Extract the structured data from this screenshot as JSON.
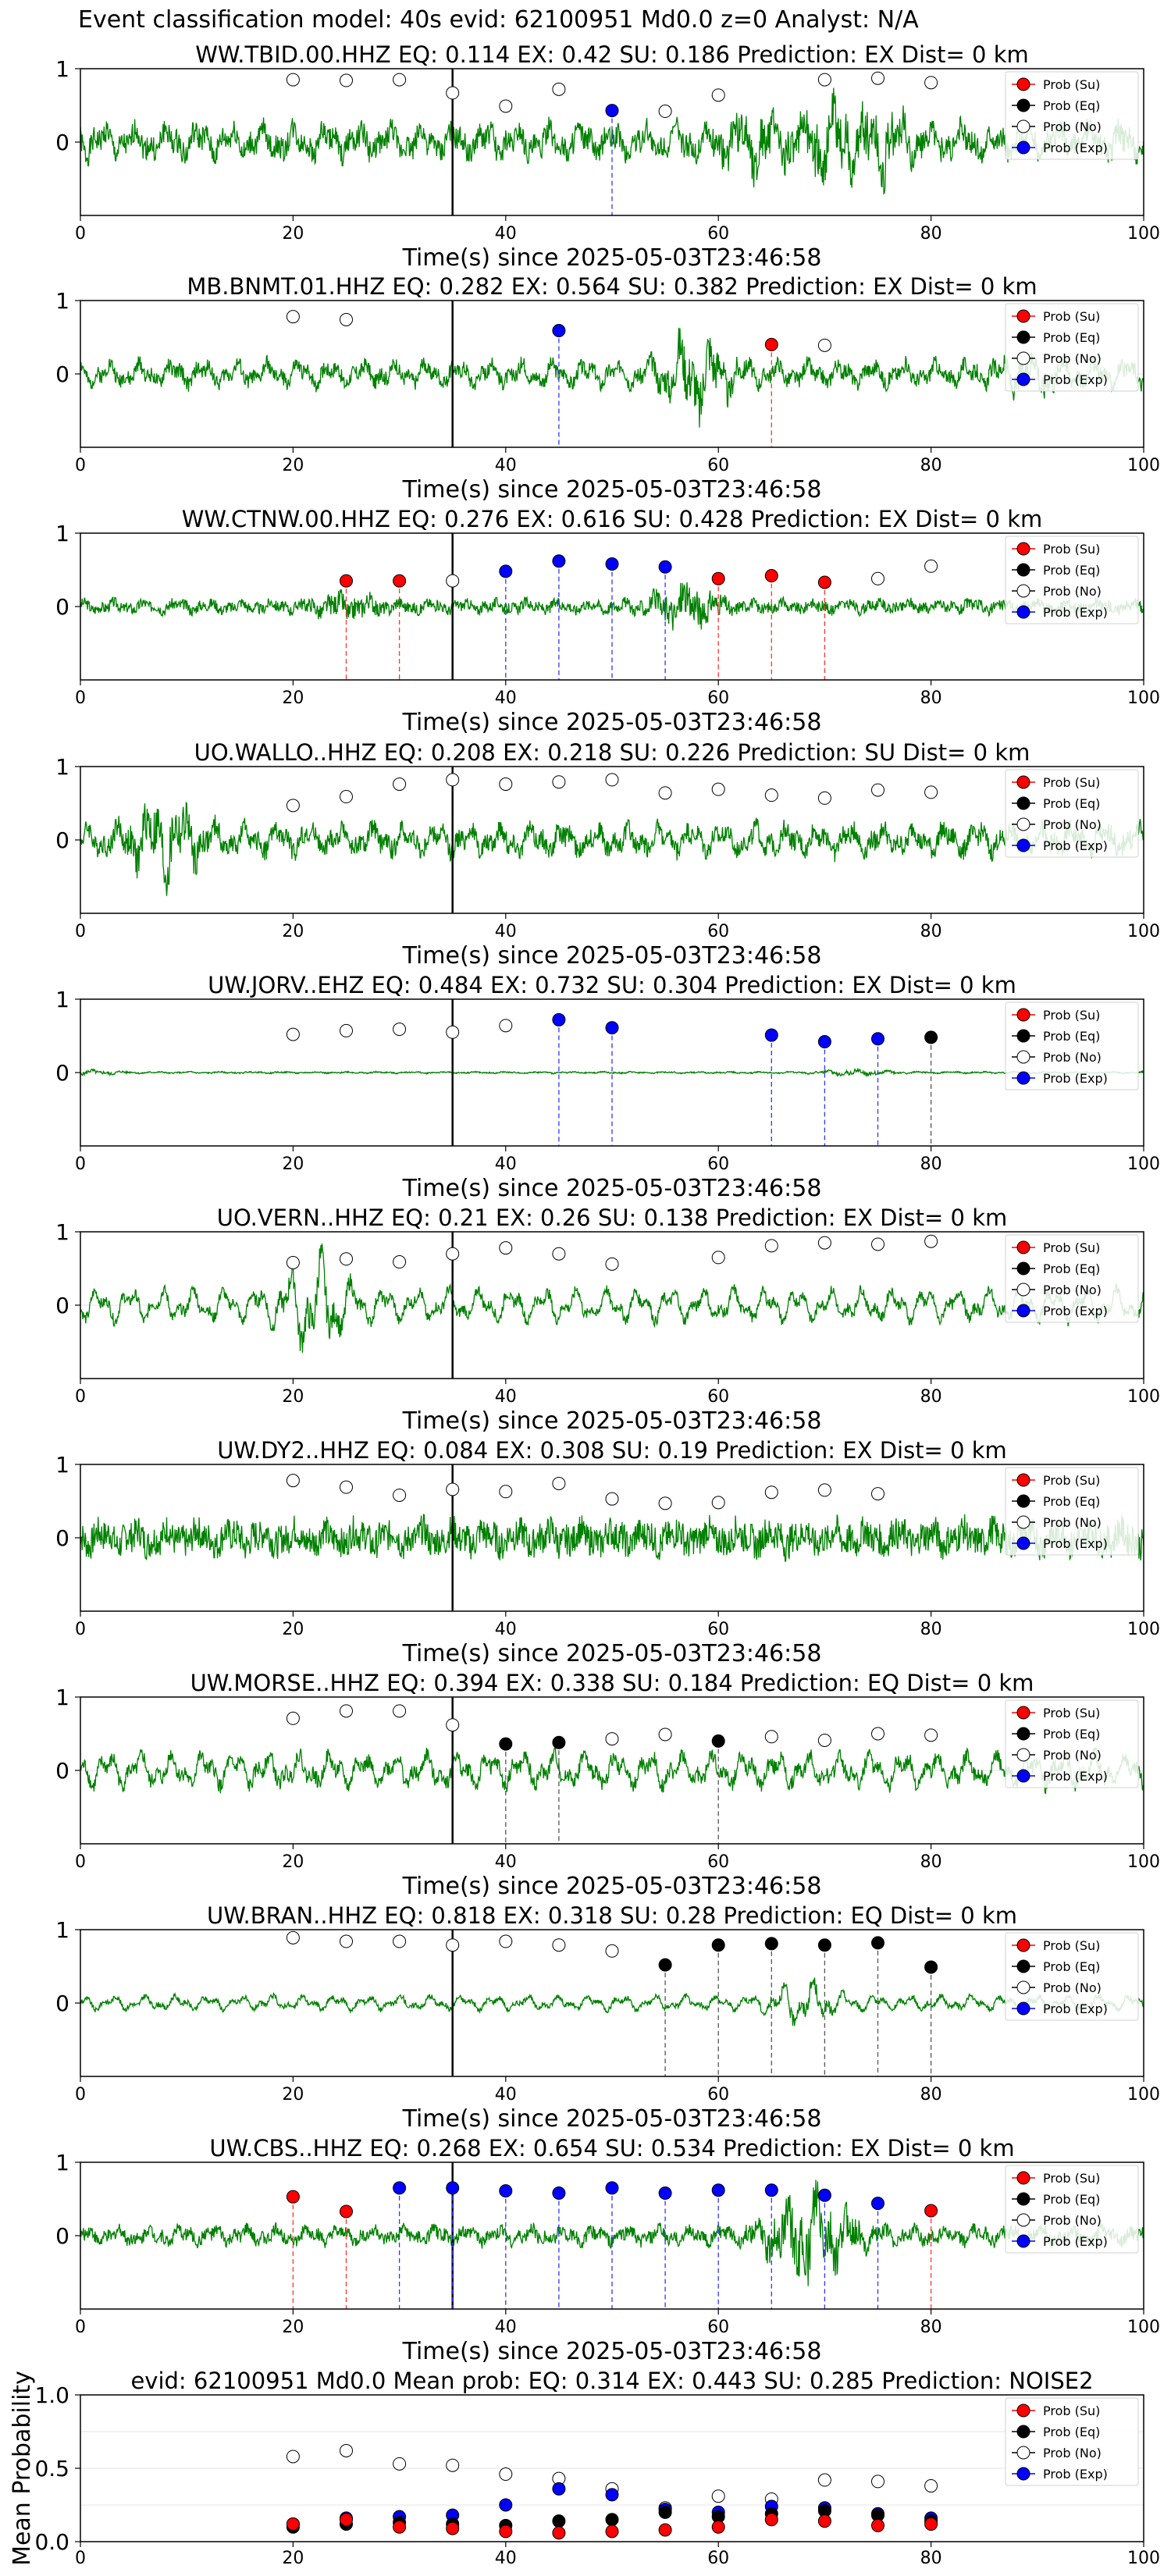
{
  "figure_title": "Event classification model: 40s evid: 62100951 Md0.0 z=0 Analyst: N/A",
  "legend_labels": [
    "Prob (Su)",
    "Prob (Eq)",
    "Prob (No)",
    "Prob (Exp)"
  ],
  "colors": {
    "Su": "#ff0000",
    "Eq": "#000000",
    "No": "#ffffff",
    "Exp": "#0000ff",
    "waveform": "#008000"
  },
  "chart_data": [
    {
      "type": "line",
      "station": "WW.TBID.00.HHZ",
      "title": "WW.TBID.00.HHZ   EQ: 0.114  EX: 0.42  SU: 0.186   Prediction: EX    Dist= 0 km",
      "xlabel": "Time(s) since 2025-05-03T23:46:58",
      "ylabel": "",
      "xlim": [
        0,
        100
      ],
      "ylim": [
        -1,
        1
      ],
      "xticks": [
        "0",
        "20",
        "40",
        "60",
        "80",
        "100"
      ],
      "yticks": [
        "1",
        "0"
      ],
      "pick_time": 35,
      "amp": 0.38,
      "noise": 0.55,
      "spikes": [
        [
          63,
          0.3
        ],
        [
          70,
          0.4
        ],
        [
          75,
          0.4
        ]
      ],
      "seed": 1,
      "no": [
        [
          20,
          0.85
        ],
        [
          25,
          0.84
        ],
        [
          30,
          0.85
        ],
        [
          35,
          0.67
        ],
        [
          40,
          0.49
        ],
        [
          45,
          0.72
        ],
        [
          55,
          0.42
        ],
        [
          60,
          0.64
        ],
        [
          70,
          0.85
        ],
        [
          75,
          0.87
        ],
        [
          80,
          0.81
        ]
      ],
      "eq": [],
      "su": [],
      "ex": [
        [
          50,
          0.43
        ]
      ]
    },
    {
      "type": "line",
      "station": "MB.BNMT.01.HHZ",
      "title": "MB.BNMT.01.HHZ   EQ: 0.282  EX: 0.564  SU: 0.382   Prediction: EX    Dist= 0 km",
      "xlabel": "Time(s) since 2025-05-03T23:46:58",
      "ylabel": "",
      "xlim": [
        0,
        100
      ],
      "ylim": [
        -1,
        1
      ],
      "xticks": [
        "0",
        "20",
        "40",
        "60",
        "80",
        "100"
      ],
      "yticks": [
        "1",
        "0"
      ],
      "pick_time": 35,
      "amp": 0.3,
      "noise": 0.35,
      "spikes": [
        [
          58,
          0.8
        ],
        [
          90,
          0.3
        ]
      ],
      "seed": 2,
      "no": [
        [
          20,
          0.78
        ],
        [
          25,
          0.74
        ],
        [
          70,
          0.39
        ]
      ],
      "eq": [],
      "su": [
        [
          65,
          0.4
        ]
      ],
      "ex": [
        [
          45,
          0.59
        ]
      ]
    },
    {
      "type": "line",
      "station": "WW.CTNW.00.HHZ",
      "title": "WW.CTNW.00.HHZ   EQ: 0.276  EX: 0.616  SU: 0.428   Prediction: EX    Dist= 0 km",
      "xlabel": "Time(s) since 2025-05-03T23:46:58",
      "ylabel": "",
      "xlim": [
        0,
        100
      ],
      "ylim": [
        -1,
        1
      ],
      "xticks": [
        "0",
        "20",
        "40",
        "60",
        "80",
        "100"
      ],
      "yticks": [
        "1",
        "0"
      ],
      "pick_time": 35,
      "amp": 0.12,
      "noise": 0.25,
      "spikes": [
        [
          25,
          0.35
        ],
        [
          57,
          0.8
        ]
      ],
      "seed": 3,
      "no": [
        [
          35,
          0.35
        ],
        [
          75,
          0.38
        ],
        [
          80,
          0.55
        ]
      ],
      "eq": [],
      "su": [
        [
          25,
          0.35
        ],
        [
          30,
          0.35
        ],
        [
          60,
          0.38
        ],
        [
          65,
          0.42
        ],
        [
          70,
          0.33
        ]
      ],
      "ex": [
        [
          40,
          0.48
        ],
        [
          45,
          0.62
        ],
        [
          50,
          0.58
        ],
        [
          55,
          0.54
        ]
      ]
    },
    {
      "type": "line",
      "station": "UO.WALLO..HHZ",
      "title": "UO.WALLO..HHZ   EQ: 0.208  EX: 0.218  SU: 0.226   Prediction: SU    Dist= 0 km",
      "xlabel": "Time(s) since 2025-05-03T23:46:58",
      "ylabel": "",
      "xlim": [
        0,
        100
      ],
      "ylim": [
        -1,
        1
      ],
      "xticks": [
        "0",
        "20",
        "40",
        "60",
        "80",
        "100"
      ],
      "yticks": [
        "1",
        "0"
      ],
      "pick_time": 35,
      "amp": 0.35,
      "noise": 0.45,
      "spikes": [
        [
          8,
          0.6
        ]
      ],
      "seed": 4,
      "no": [
        [
          20,
          0.47
        ],
        [
          25,
          0.59
        ],
        [
          30,
          0.76
        ],
        [
          35,
          0.82
        ],
        [
          40,
          0.76
        ],
        [
          45,
          0.79
        ],
        [
          50,
          0.82
        ],
        [
          55,
          0.64
        ],
        [
          60,
          0.69
        ],
        [
          65,
          0.61
        ],
        [
          70,
          0.57
        ],
        [
          75,
          0.68
        ],
        [
          80,
          0.65
        ]
      ],
      "eq": [],
      "su": [],
      "ex": []
    },
    {
      "type": "line",
      "station": "UW.JORV..EHZ",
      "title": "UW.JORV..EHZ   EQ: 0.484  EX: 0.732  SU: 0.304   Prediction: EX    Dist= 0 km",
      "xlabel": "Time(s) since 2025-05-03T23:46:58",
      "ylabel": "",
      "xlim": [
        0,
        100
      ],
      "ylim": [
        -1,
        1
      ],
      "xticks": [
        "0",
        "20",
        "40",
        "60",
        "80",
        "100"
      ],
      "yticks": [
        "1",
        "0"
      ],
      "pick_time": 35,
      "amp": 0.02,
      "noise": 0.03,
      "spikes": [
        [
          1,
          0.6
        ],
        [
          73,
          0.9
        ]
      ],
      "seed": 5,
      "no": [
        [
          20,
          0.52
        ],
        [
          25,
          0.57
        ],
        [
          30,
          0.59
        ],
        [
          35,
          0.55
        ],
        [
          40,
          0.64
        ]
      ],
      "eq": [
        [
          80,
          0.48
        ]
      ],
      "su": [],
      "ex": [
        [
          45,
          0.72
        ],
        [
          50,
          0.61
        ],
        [
          65,
          0.51
        ],
        [
          70,
          0.42
        ],
        [
          75,
          0.46
        ]
      ]
    },
    {
      "type": "line",
      "station": "UO.VERN..HHZ",
      "title": "UO.VERN..HHZ   EQ: 0.21  EX: 0.26  SU: 0.138   Prediction: EX    Dist= 0 km",
      "xlabel": "Time(s) since 2025-05-03T23:46:58",
      "ylabel": "",
      "xlim": [
        0,
        100
      ],
      "ylim": [
        -1,
        1
      ],
      "xticks": [
        "0",
        "20",
        "40",
        "60",
        "80",
        "100"
      ],
      "yticks": [
        "1",
        "0"
      ],
      "pick_time": 35,
      "amp": 0.45,
      "noise": 0.25,
      "spikes": [
        [
          22,
          0.7
        ]
      ],
      "seed": 6,
      "no": [
        [
          20,
          0.58
        ],
        [
          25,
          0.63
        ],
        [
          30,
          0.59
        ],
        [
          35,
          0.7
        ],
        [
          40,
          0.78
        ],
        [
          45,
          0.7
        ],
        [
          50,
          0.56
        ],
        [
          60,
          0.65
        ],
        [
          65,
          0.81
        ],
        [
          70,
          0.85
        ],
        [
          75,
          0.83
        ],
        [
          80,
          0.87
        ]
      ],
      "eq": [],
      "su": [],
      "ex": []
    },
    {
      "type": "line",
      "station": "UW.DY2..HHZ",
      "title": "UW.DY2..HHZ   EQ: 0.084  EX: 0.308  SU: 0.19   Prediction: EX    Dist= 0 km",
      "xlabel": "Time(s) since 2025-05-03T23:46:58",
      "ylabel": "",
      "xlim": [
        0,
        100
      ],
      "ylim": [
        -1,
        1
      ],
      "xticks": [
        "0",
        "20",
        "40",
        "60",
        "80",
        "100"
      ],
      "yticks": [
        "1",
        "0"
      ],
      "pick_time": 35,
      "amp": 0.25,
      "noise": 0.7,
      "spikes": [],
      "seed": 7,
      "no": [
        [
          20,
          0.78
        ],
        [
          25,
          0.69
        ],
        [
          30,
          0.58
        ],
        [
          35,
          0.66
        ],
        [
          40,
          0.63
        ],
        [
          45,
          0.74
        ],
        [
          50,
          0.53
        ],
        [
          55,
          0.47
        ],
        [
          60,
          0.48
        ],
        [
          65,
          0.62
        ],
        [
          70,
          0.65
        ],
        [
          75,
          0.6
        ]
      ],
      "eq": [],
      "su": [],
      "ex": []
    },
    {
      "type": "line",
      "station": "UW.MORSE..HHZ",
      "title": "UW.MORSE..HHZ   EQ: 0.394  EX: 0.338  SU: 0.184   Prediction: EQ    Dist= 0 km",
      "xlabel": "Time(s) since 2025-05-03T23:46:58",
      "ylabel": "",
      "xlim": [
        0,
        100
      ],
      "ylim": [
        -1,
        1
      ],
      "xticks": [
        "0",
        "20",
        "40",
        "60",
        "80",
        "100"
      ],
      "yticks": [
        "1",
        "0"
      ],
      "pick_time": 35,
      "amp": 0.45,
      "noise": 0.35,
      "spikes": [],
      "seed": 8,
      "no": [
        [
          20,
          0.71
        ],
        [
          25,
          0.81
        ],
        [
          30,
          0.81
        ],
        [
          35,
          0.62
        ],
        [
          50,
          0.43
        ],
        [
          55,
          0.49
        ],
        [
          65,
          0.46
        ],
        [
          70,
          0.41
        ],
        [
          75,
          0.5
        ],
        [
          80,
          0.48
        ]
      ],
      "eq": [
        [
          40,
          0.36
        ],
        [
          45,
          0.38
        ],
        [
          60,
          0.4
        ]
      ],
      "su": [],
      "ex": []
    },
    {
      "type": "line",
      "station": "UW.BRAN..HHZ",
      "title": "UW.BRAN..HHZ   EQ: 0.818  EX: 0.318  SU: 0.28   Prediction: EQ    Dist= 0 km",
      "xlabel": "Time(s) since 2025-05-03T23:46:58",
      "ylabel": "",
      "xlim": [
        0,
        100
      ],
      "ylim": [
        -1,
        1
      ],
      "xticks": [
        "0",
        "20",
        "40",
        "60",
        "80",
        "100"
      ],
      "yticks": [
        "1",
        "0"
      ],
      "pick_time": 35,
      "amp": 0.2,
      "noise": 0.12,
      "spikes": [
        [
          68,
          0.7
        ]
      ],
      "seed": 9,
      "no": [
        [
          20,
          0.89
        ],
        [
          25,
          0.84
        ],
        [
          30,
          0.84
        ],
        [
          35,
          0.79
        ],
        [
          40,
          0.84
        ],
        [
          45,
          0.79
        ],
        [
          50,
          0.71
        ]
      ],
      "eq": [
        [
          55,
          0.52
        ],
        [
          60,
          0.79
        ],
        [
          65,
          0.81
        ],
        [
          70,
          0.79
        ],
        [
          75,
          0.82
        ],
        [
          80,
          0.49
        ]
      ],
      "su": [],
      "ex": []
    },
    {
      "type": "line",
      "station": "UW.CBS..HHZ",
      "title": "UW.CBS..HHZ   EQ: 0.268  EX: 0.654  SU: 0.534   Prediction: EX    Dist= 0 km",
      "xlabel": "Time(s) since 2025-05-03T23:46:58",
      "ylabel": "",
      "xlim": [
        0,
        100
      ],
      "ylim": [
        -1,
        1
      ],
      "xticks": [
        "0",
        "20",
        "40",
        "60",
        "80",
        "100"
      ],
      "yticks": [
        "1",
        "0"
      ],
      "pick_time": 35,
      "amp": 0.2,
      "noise": 0.3,
      "spikes": [
        [
          67,
          0.7
        ],
        [
          70,
          0.9
        ]
      ],
      "seed": 10,
      "no": [],
      "eq": [],
      "su": [
        [
          20,
          0.53
        ],
        [
          25,
          0.33
        ],
        [
          80,
          0.34
        ]
      ],
      "ex": [
        [
          30,
          0.65
        ],
        [
          35,
          0.65
        ],
        [
          40,
          0.61
        ],
        [
          45,
          0.58
        ],
        [
          50,
          0.65
        ],
        [
          55,
          0.58
        ],
        [
          60,
          0.62
        ],
        [
          65,
          0.62
        ],
        [
          70,
          0.55
        ],
        [
          75,
          0.44
        ]
      ]
    },
    {
      "type": "scatter",
      "title": "evid: 62100951  Md0.0   Mean prob:   EQ: 0.314  EX: 0.443  SU: 0.285   Prediction: NOISE2",
      "xlabel": "",
      "ylabel": "Mean Probability",
      "xlim": [
        0,
        100
      ],
      "ylim": [
        0,
        1
      ],
      "xticks": [
        "0",
        "20",
        "40",
        "60",
        "80",
        "100"
      ],
      "yticks": [
        "1.0",
        "0.5",
        "0.0"
      ],
      "x": [
        20,
        25,
        30,
        35,
        40,
        45,
        50,
        55,
        60,
        65,
        70,
        75,
        80
      ],
      "series": [
        {
          "name": "Prob (Su)",
          "values": [
            0.12,
            0.15,
            0.1,
            0.09,
            0.07,
            0.06,
            0.07,
            0.08,
            0.1,
            0.15,
            0.14,
            0.11,
            0.12
          ]
        },
        {
          "name": "Prob (Eq)",
          "values": [
            0.1,
            0.12,
            0.13,
            0.12,
            0.11,
            0.14,
            0.15,
            0.2,
            0.17,
            0.19,
            0.21,
            0.18,
            0.14
          ]
        },
        {
          "name": "Prob (No)",
          "values": [
            0.58,
            0.62,
            0.53,
            0.52,
            0.46,
            0.43,
            0.36,
            0.23,
            0.31,
            0.29,
            0.42,
            0.41,
            0.38
          ]
        },
        {
          "name": "Prob (Exp)",
          "values": [
            0.12,
            0.16,
            0.17,
            0.18,
            0.25,
            0.36,
            0.32,
            0.22,
            0.2,
            0.24,
            0.23,
            0.19,
            0.16
          ]
        }
      ]
    }
  ]
}
